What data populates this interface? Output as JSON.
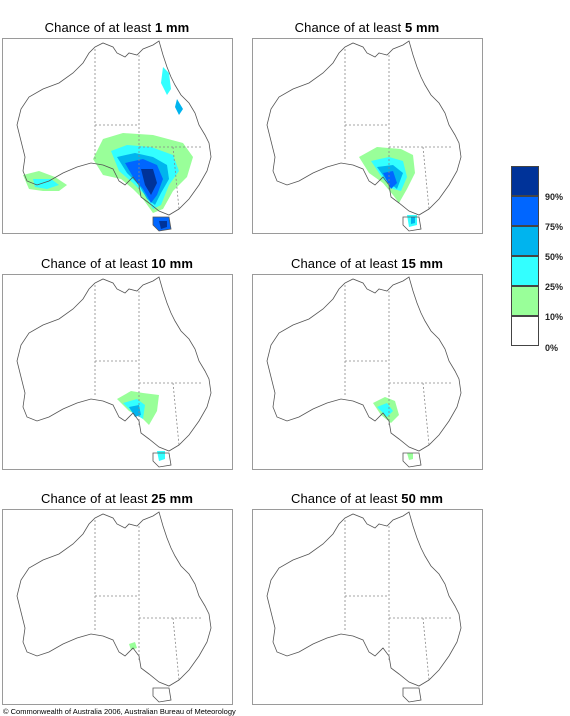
{
  "panels": [
    {
      "prefix": "Chance of at least ",
      "amount": "1 mm"
    },
    {
      "prefix": "Chance of at least ",
      "amount": "5 mm"
    },
    {
      "prefix": "Chance of at least ",
      "amount": "10 mm"
    },
    {
      "prefix": "Chance of at least ",
      "amount": "15 mm"
    },
    {
      "prefix": "Chance of at least ",
      "amount": "25 mm"
    },
    {
      "prefix": "Chance of at least ",
      "amount": "50 mm"
    }
  ],
  "legend": {
    "labels": [
      "90%",
      "75%",
      "50%",
      "25%",
      "10%",
      "0%"
    ],
    "colors": [
      "#003399",
      "#0066ff",
      "#00b4ee",
      "#33ffff",
      "#99ff99",
      "#ffffff"
    ]
  },
  "copyright": "© Commonwealth of Australia 2006, Australian Bureau of Meteorology"
}
